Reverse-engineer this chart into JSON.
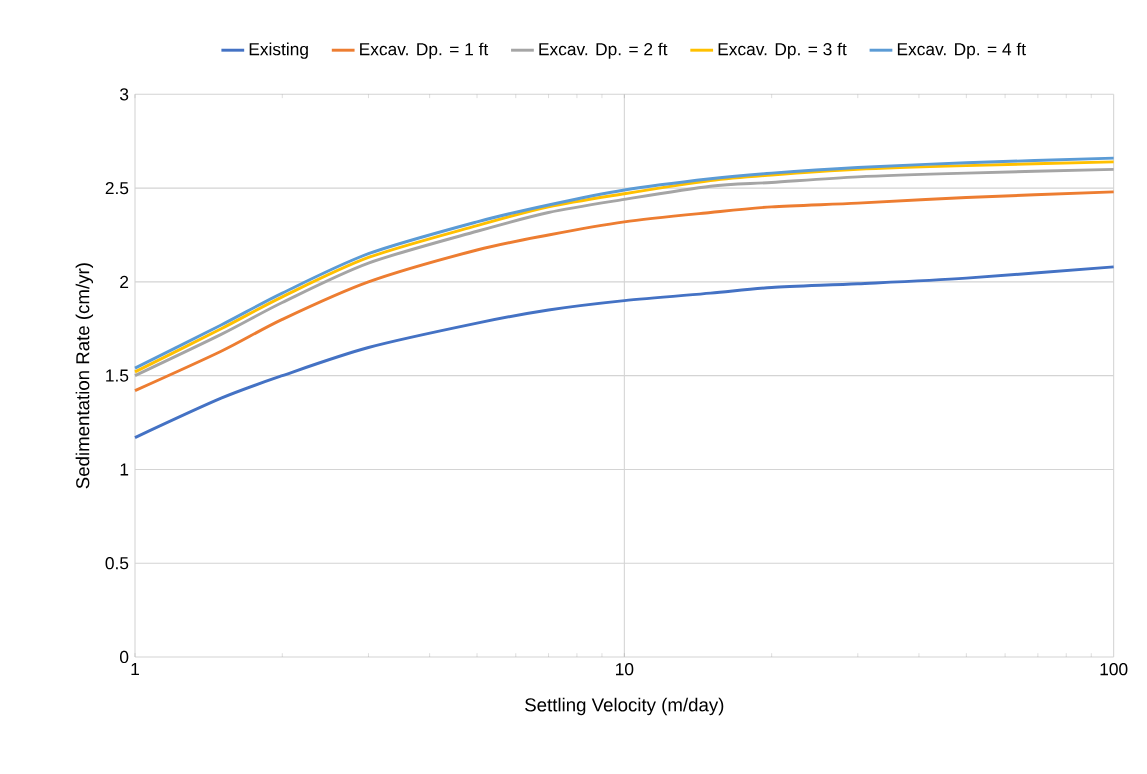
{
  "chart_data": {
    "type": "line",
    "xlabel": "Settling Velocity (m/day)",
    "ylabel": "Sedimentation Rate (cm/yr)",
    "log": "x",
    "grid": true,
    "legend": "top",
    "line_style": "solid",
    "xlim": [
      1,
      100
    ],
    "xticks": [
      1,
      10,
      100
    ],
    "ylim": [
      0,
      3
    ],
    "yticks": [
      0,
      0.5,
      1,
      1.5,
      2,
      2.5,
      3
    ],
    "x": [
      1,
      1.5,
      2,
      3,
      5,
      7,
      10,
      15,
      20,
      30,
      50,
      100
    ],
    "series": [
      {
        "name": "Existing",
        "color": "#4472c4",
        "values": [
          1.17,
          1.38,
          1.5,
          1.65,
          1.78,
          1.85,
          1.9,
          1.94,
          1.97,
          1.99,
          2.02,
          2.08
        ]
      },
      {
        "name": "Excav. Dp. = 1 ft",
        "color": "#ed7d31",
        "values": [
          1.42,
          1.63,
          1.8,
          2.0,
          2.17,
          2.25,
          2.32,
          2.37,
          2.4,
          2.42,
          2.45,
          2.48
        ]
      },
      {
        "name": "Excav. Dp. = 2 ft",
        "color": "#a5a5a5",
        "values": [
          1.5,
          1.72,
          1.89,
          2.1,
          2.27,
          2.37,
          2.44,
          2.51,
          2.53,
          2.56,
          2.58,
          2.6
        ]
      },
      {
        "name": "Excav. Dp. = 3 ft",
        "color": "#ffc000",
        "values": [
          1.52,
          1.75,
          1.92,
          2.13,
          2.3,
          2.4,
          2.47,
          2.54,
          2.57,
          2.6,
          2.62,
          2.64
        ]
      },
      {
        "name": "Excav. Dp. = 4 ft",
        "color": "#5b9bd5",
        "values": [
          1.54,
          1.77,
          1.94,
          2.15,
          2.32,
          2.41,
          2.49,
          2.55,
          2.58,
          2.61,
          2.635,
          2.66
        ]
      }
    ]
  }
}
